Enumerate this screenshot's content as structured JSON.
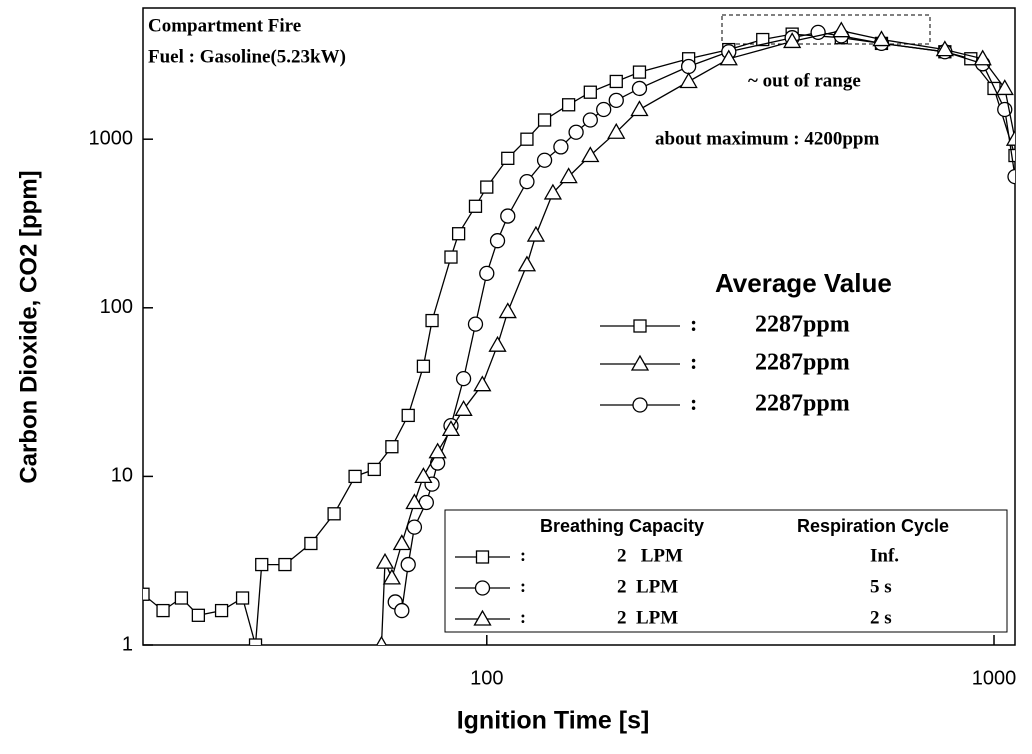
{
  "chart_data": {
    "type": "line",
    "xscale": "log",
    "yscale": "log",
    "xlabel": "Ignition Time [s]",
    "ylabel": "Carbon Dioxide, CO2 [ppm]",
    "xlim": [
      21,
      1100
    ],
    "ylim": [
      1,
      6000
    ],
    "xticks": [
      100,
      1000
    ],
    "yticks": [
      1,
      10,
      100,
      1000
    ],
    "annotations": [
      "Compartment Fire",
      "Fuel : Gasoline(5.23kW)",
      "~ out of range",
      "about maximum : 4200ppm"
    ],
    "series": [
      {
        "marker": "square",
        "color": "#000000",
        "x": [
          21,
          23,
          25,
          27,
          30,
          33,
          35,
          36,
          40,
          45,
          50,
          55,
          60,
          65,
          70,
          75,
          78,
          85,
          88,
          95,
          100,
          110,
          120,
          130,
          145,
          160,
          180,
          200,
          250,
          300,
          350,
          400,
          500,
          600,
          800,
          900,
          1000,
          1100
        ],
        "values": [
          2,
          1.6,
          1.9,
          1.5,
          1.6,
          1.9,
          1,
          3,
          3,
          4,
          6,
          10,
          11,
          15,
          23,
          45,
          84,
          200,
          275,
          400,
          520,
          770,
          1000,
          1300,
          1600,
          1900,
          2200,
          2500,
          3000,
          3400,
          3900,
          4200,
          4000,
          3700,
          3300,
          3000,
          2000,
          800
        ]
      },
      {
        "marker": "circle",
        "color": "#000000",
        "x": [
          66,
          68,
          70,
          72,
          76,
          78,
          80,
          85,
          90,
          95,
          100,
          105,
          110,
          120,
          130,
          140,
          150,
          160,
          170,
          180,
          200,
          250,
          300,
          400,
          450,
          500,
          600,
          800,
          950,
          1050,
          1100
        ],
        "values": [
          1.8,
          1.6,
          3,
          5,
          7,
          9,
          12,
          20,
          38,
          80,
          160,
          250,
          350,
          560,
          750,
          900,
          1100,
          1300,
          1500,
          1700,
          2000,
          2700,
          3300,
          4000,
          4300,
          4100,
          3700,
          3300,
          2800,
          1500,
          600
        ]
      },
      {
        "marker": "triangle",
        "color": "#000000",
        "x": [
          62,
          63,
          65,
          68,
          72,
          75,
          80,
          85,
          90,
          98,
          105,
          110,
          120,
          125,
          135,
          145,
          160,
          180,
          200,
          250,
          300,
          400,
          500,
          600,
          800,
          950,
          1050,
          1100
        ],
        "values": [
          1,
          3.1,
          2.5,
          4,
          7,
          10,
          14,
          19,
          25,
          35,
          60,
          95,
          180,
          270,
          480,
          600,
          800,
          1100,
          1500,
          2200,
          3000,
          3800,
          4400,
          3900,
          3400,
          3000,
          2000,
          1000
        ]
      }
    ],
    "average_value": {
      "title": "Average Value",
      "rows": [
        {
          "marker": "square",
          "separator": ":",
          "label": "2287ppm"
        },
        {
          "marker": "triangle",
          "separator": ":",
          "label": "2287ppm"
        },
        {
          "marker": "circle",
          "separator": ":",
          "label": "2287ppm"
        }
      ]
    },
    "legend_table": {
      "headers": [
        "Breathing Capacity",
        "Respiration Cycle"
      ],
      "rows": [
        {
          "marker": "square",
          "separator": ":",
          "capacity": "2   LPM",
          "cycle": "Inf."
        },
        {
          "marker": "circle",
          "separator": ":",
          "capacity": "2  LPM",
          "cycle": "5 s"
        },
        {
          "marker": "triangle",
          "separator": ":",
          "capacity": "2  LPM",
          "cycle": "2 s"
        }
      ]
    }
  }
}
